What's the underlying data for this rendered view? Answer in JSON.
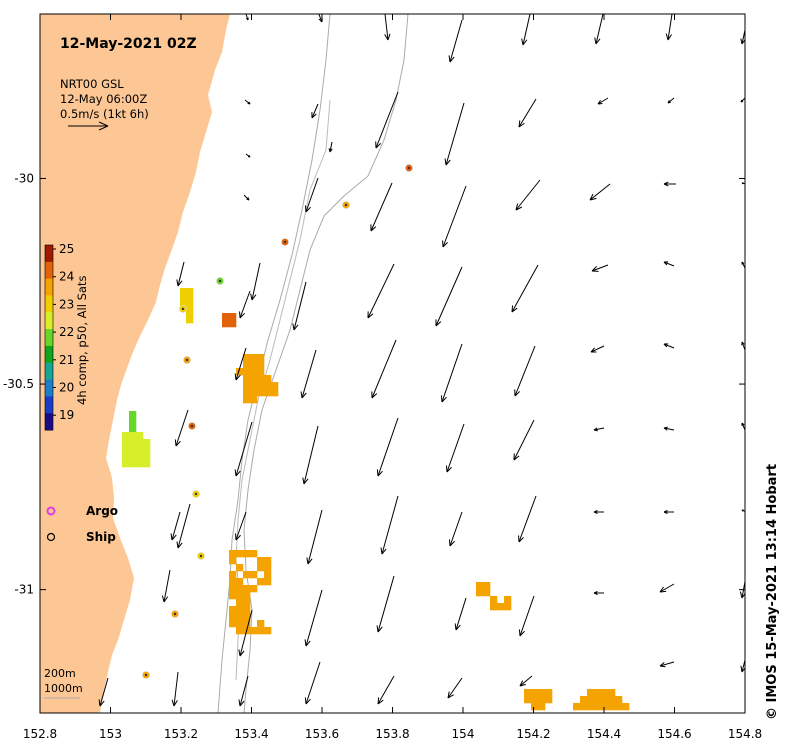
{
  "map": {
    "title": "12-May-2021 02Z",
    "credit": "© IMOS 15-May-2021 13:14 Hobart",
    "legend_vectors": {
      "product": "NRT00 GSL",
      "time": "12-May 06:00Z",
      "scale": "0.5m/s (1kt 6h)"
    },
    "colorbar": {
      "label": "4h comp, p50, All Sats",
      "ticks": [
        "25",
        "24",
        "23",
        "22",
        "21",
        "20",
        "19"
      ],
      "colors": [
        "#9e1a00",
        "#e2620a",
        "#f5a300",
        "#efcf00",
        "#d8ee28",
        "#66d629",
        "#0ea61e",
        "#14a795",
        "#1b7ecb",
        "#1b3cc4",
        "#1b0b86"
      ]
    },
    "markers": {
      "argo": "Argo",
      "ship": "Ship",
      "argo_color": "#e23de2"
    },
    "contours": {
      "shallow": "200m",
      "deep": "1000m"
    },
    "land_color": "#fcc794",
    "xaxis": {
      "ticks": [
        "152.8",
        "153",
        "153.2",
        "153.4",
        "153.6",
        "153.8",
        "154",
        "154.2",
        "154.4",
        "154.6",
        "154.8"
      ],
      "range": [
        152.8,
        154.8
      ]
    },
    "yaxis": {
      "ticks": [
        "-30",
        "-30.5",
        "-31"
      ],
      "range": [
        -31.3,
        -29.6
      ]
    }
  }
}
